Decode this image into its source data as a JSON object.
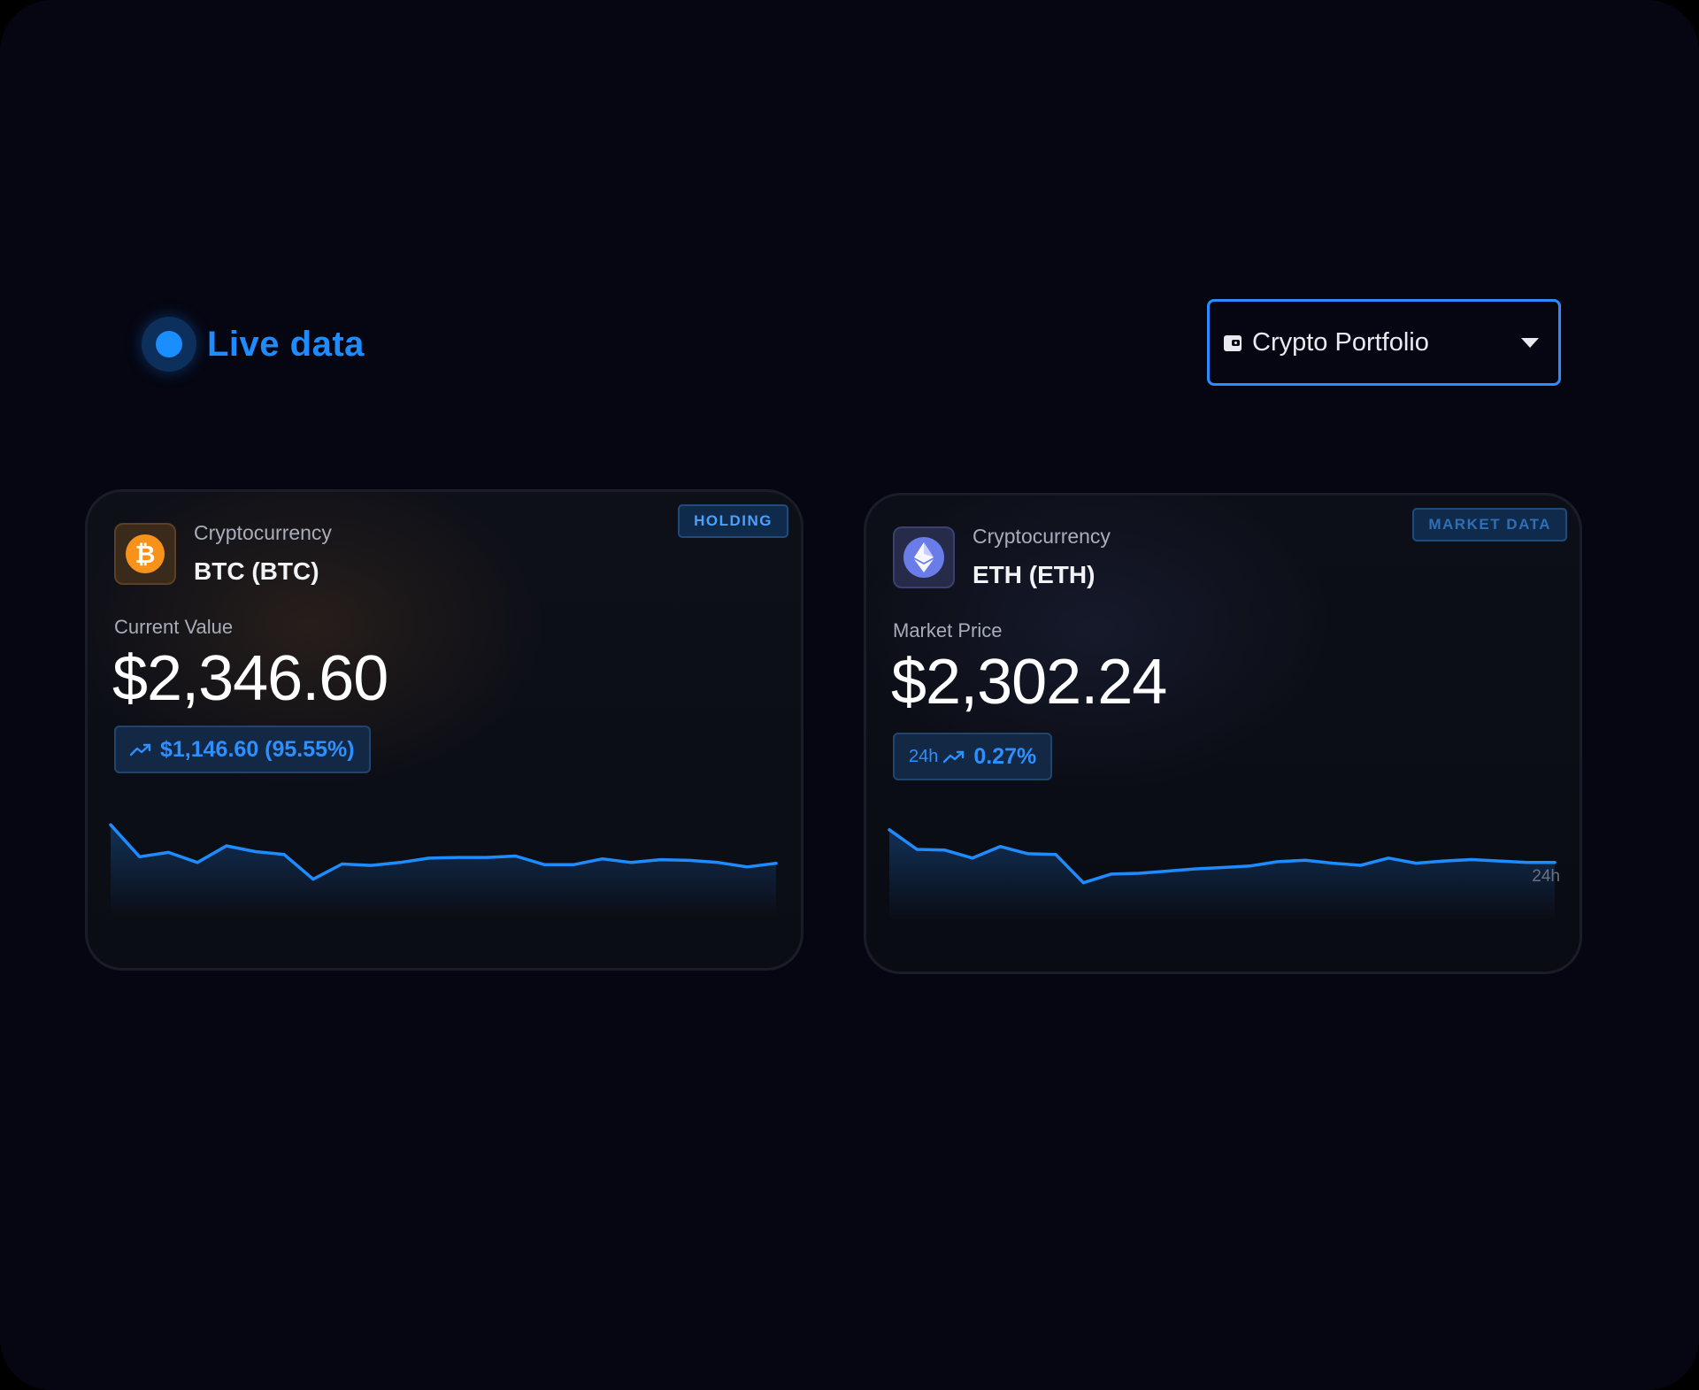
{
  "header": {
    "live_label": "Live data",
    "portfolio_select": {
      "selected": "Crypto Portfolio",
      "icon": "wallet-icon"
    }
  },
  "cards": [
    {
      "id": "btc",
      "kind": "Cryptocurrency",
      "name": "BTC (BTC)",
      "tag": "HOLDING",
      "metric_label": "Current Value",
      "metric_value": "$2,346.60",
      "change_prefix": "",
      "change_text": "$1,146.60 (95.55%)",
      "icon": "bitcoin-icon",
      "accent": "#f7931a",
      "sparkline": [
        18,
        13.6,
        14.2,
        12.8,
        15.1,
        14.3,
        13.9,
        10.5,
        12.6,
        12.4,
        12.8,
        13.4,
        13.5,
        13.5,
        13.7,
        12.5,
        12.5,
        13.3,
        12.8,
        13.2,
        13.1,
        12.8,
        12.2,
        12.7
      ],
      "range_label": ""
    },
    {
      "id": "eth",
      "kind": "Cryptocurrency",
      "name": "ETH (ETH)",
      "tag": "MARKET DATA",
      "metric_label": "Market Price",
      "metric_value": "$2,302.24",
      "change_prefix": "24h",
      "change_text": "0.27%",
      "icon": "ethereum-icon",
      "accent": "#6a7ce8",
      "sparkline": [
        17.8,
        15.1,
        15.0,
        13.9,
        15.5,
        14.5,
        14.4,
        10.5,
        11.7,
        11.8,
        12.1,
        12.4,
        12.6,
        12.8,
        13.4,
        13.6,
        13.2,
        12.9,
        13.9,
        13.2,
        13.5,
        13.7,
        13.5,
        13.3,
        13.3
      ],
      "range_label": "24h"
    }
  ],
  "colors": {
    "accent": "#1e8cff",
    "background": "#050611"
  }
}
